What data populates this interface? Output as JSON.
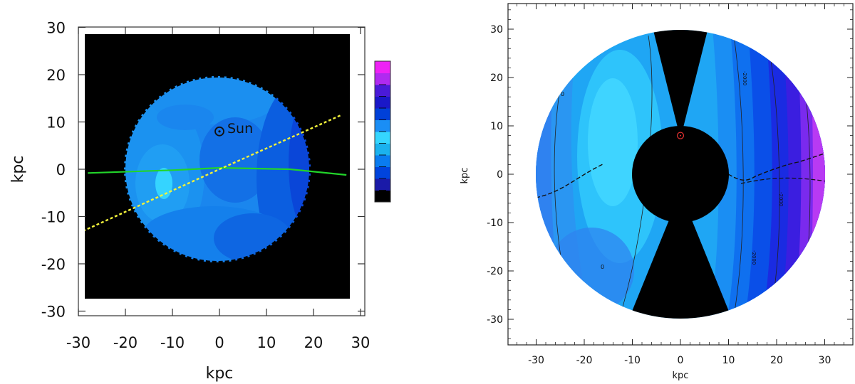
{
  "chart_data": [
    {
      "type": "heatmap",
      "title": "",
      "xlabel": "kpc",
      "ylabel": "kpc",
      "xlim": [
        -30,
        30
      ],
      "ylim": [
        -30,
        30
      ],
      "xticks": [
        -30,
        -20,
        -10,
        0,
        10,
        20,
        30
      ],
      "yticks": [
        -30,
        -20,
        -10,
        0,
        10,
        20,
        30
      ],
      "tick_labels": [
        "-30",
        "-20",
        "-10",
        "0",
        "10",
        "20",
        "30"
      ],
      "disk_radius_kpc": 20,
      "sun_marker": {
        "x": 0,
        "y": 8,
        "label": "Sun"
      },
      "green_line": [
        [
          -28,
          -0.8
        ],
        [
          -10,
          -0.2
        ],
        [
          0,
          0.3
        ],
        [
          15,
          0
        ],
        [
          27,
          -1.2
        ]
      ],
      "yellow_line": [
        [
          -30,
          -13.5
        ],
        [
          0,
          0
        ],
        [
          26,
          11.5
        ]
      ],
      "colorbar": {
        "placement": "right",
        "colors": [
          "#000000",
          "#1a1aa8",
          "#0044dd",
          "#0a7cf0",
          "#1bb2ee",
          "#35d6ff",
          "#1a8ef5",
          "#0040d8",
          "#1a18c8",
          "#4a1ad8",
          "#b02af0",
          "#ee22f5"
        ]
      },
      "background": "#000000"
    },
    {
      "type": "heatmap",
      "title": "",
      "xlabel": "kpc",
      "ylabel": "kpc",
      "xlim": [
        -35,
        35
      ],
      "ylim": [
        -35,
        35
      ],
      "xticks": [
        -30,
        -20,
        -10,
        0,
        10,
        20,
        30
      ],
      "yticks": [
        -30,
        -20,
        -10,
        0,
        10,
        20,
        30
      ],
      "tick_labels": [
        "-30",
        "-20",
        "-10",
        "0",
        "10",
        "20",
        "30"
      ],
      "outer_radius_kpc": 30,
      "inner_radius_kpc": 10,
      "sun_marker": {
        "x": 0,
        "y": 8,
        "color": "#e03030"
      },
      "contour_labels": [
        "0",
        "0",
        "-2000",
        "-2000",
        "-2000"
      ],
      "color_scale": [
        "#2f72f0",
        "#1a9cf2",
        "#35ccff",
        "#1fa8f5",
        "#0a6ef0",
        "#0a3ce8",
        "#2a1ae0",
        "#8a2af0",
        "#c43af5"
      ]
    }
  ]
}
